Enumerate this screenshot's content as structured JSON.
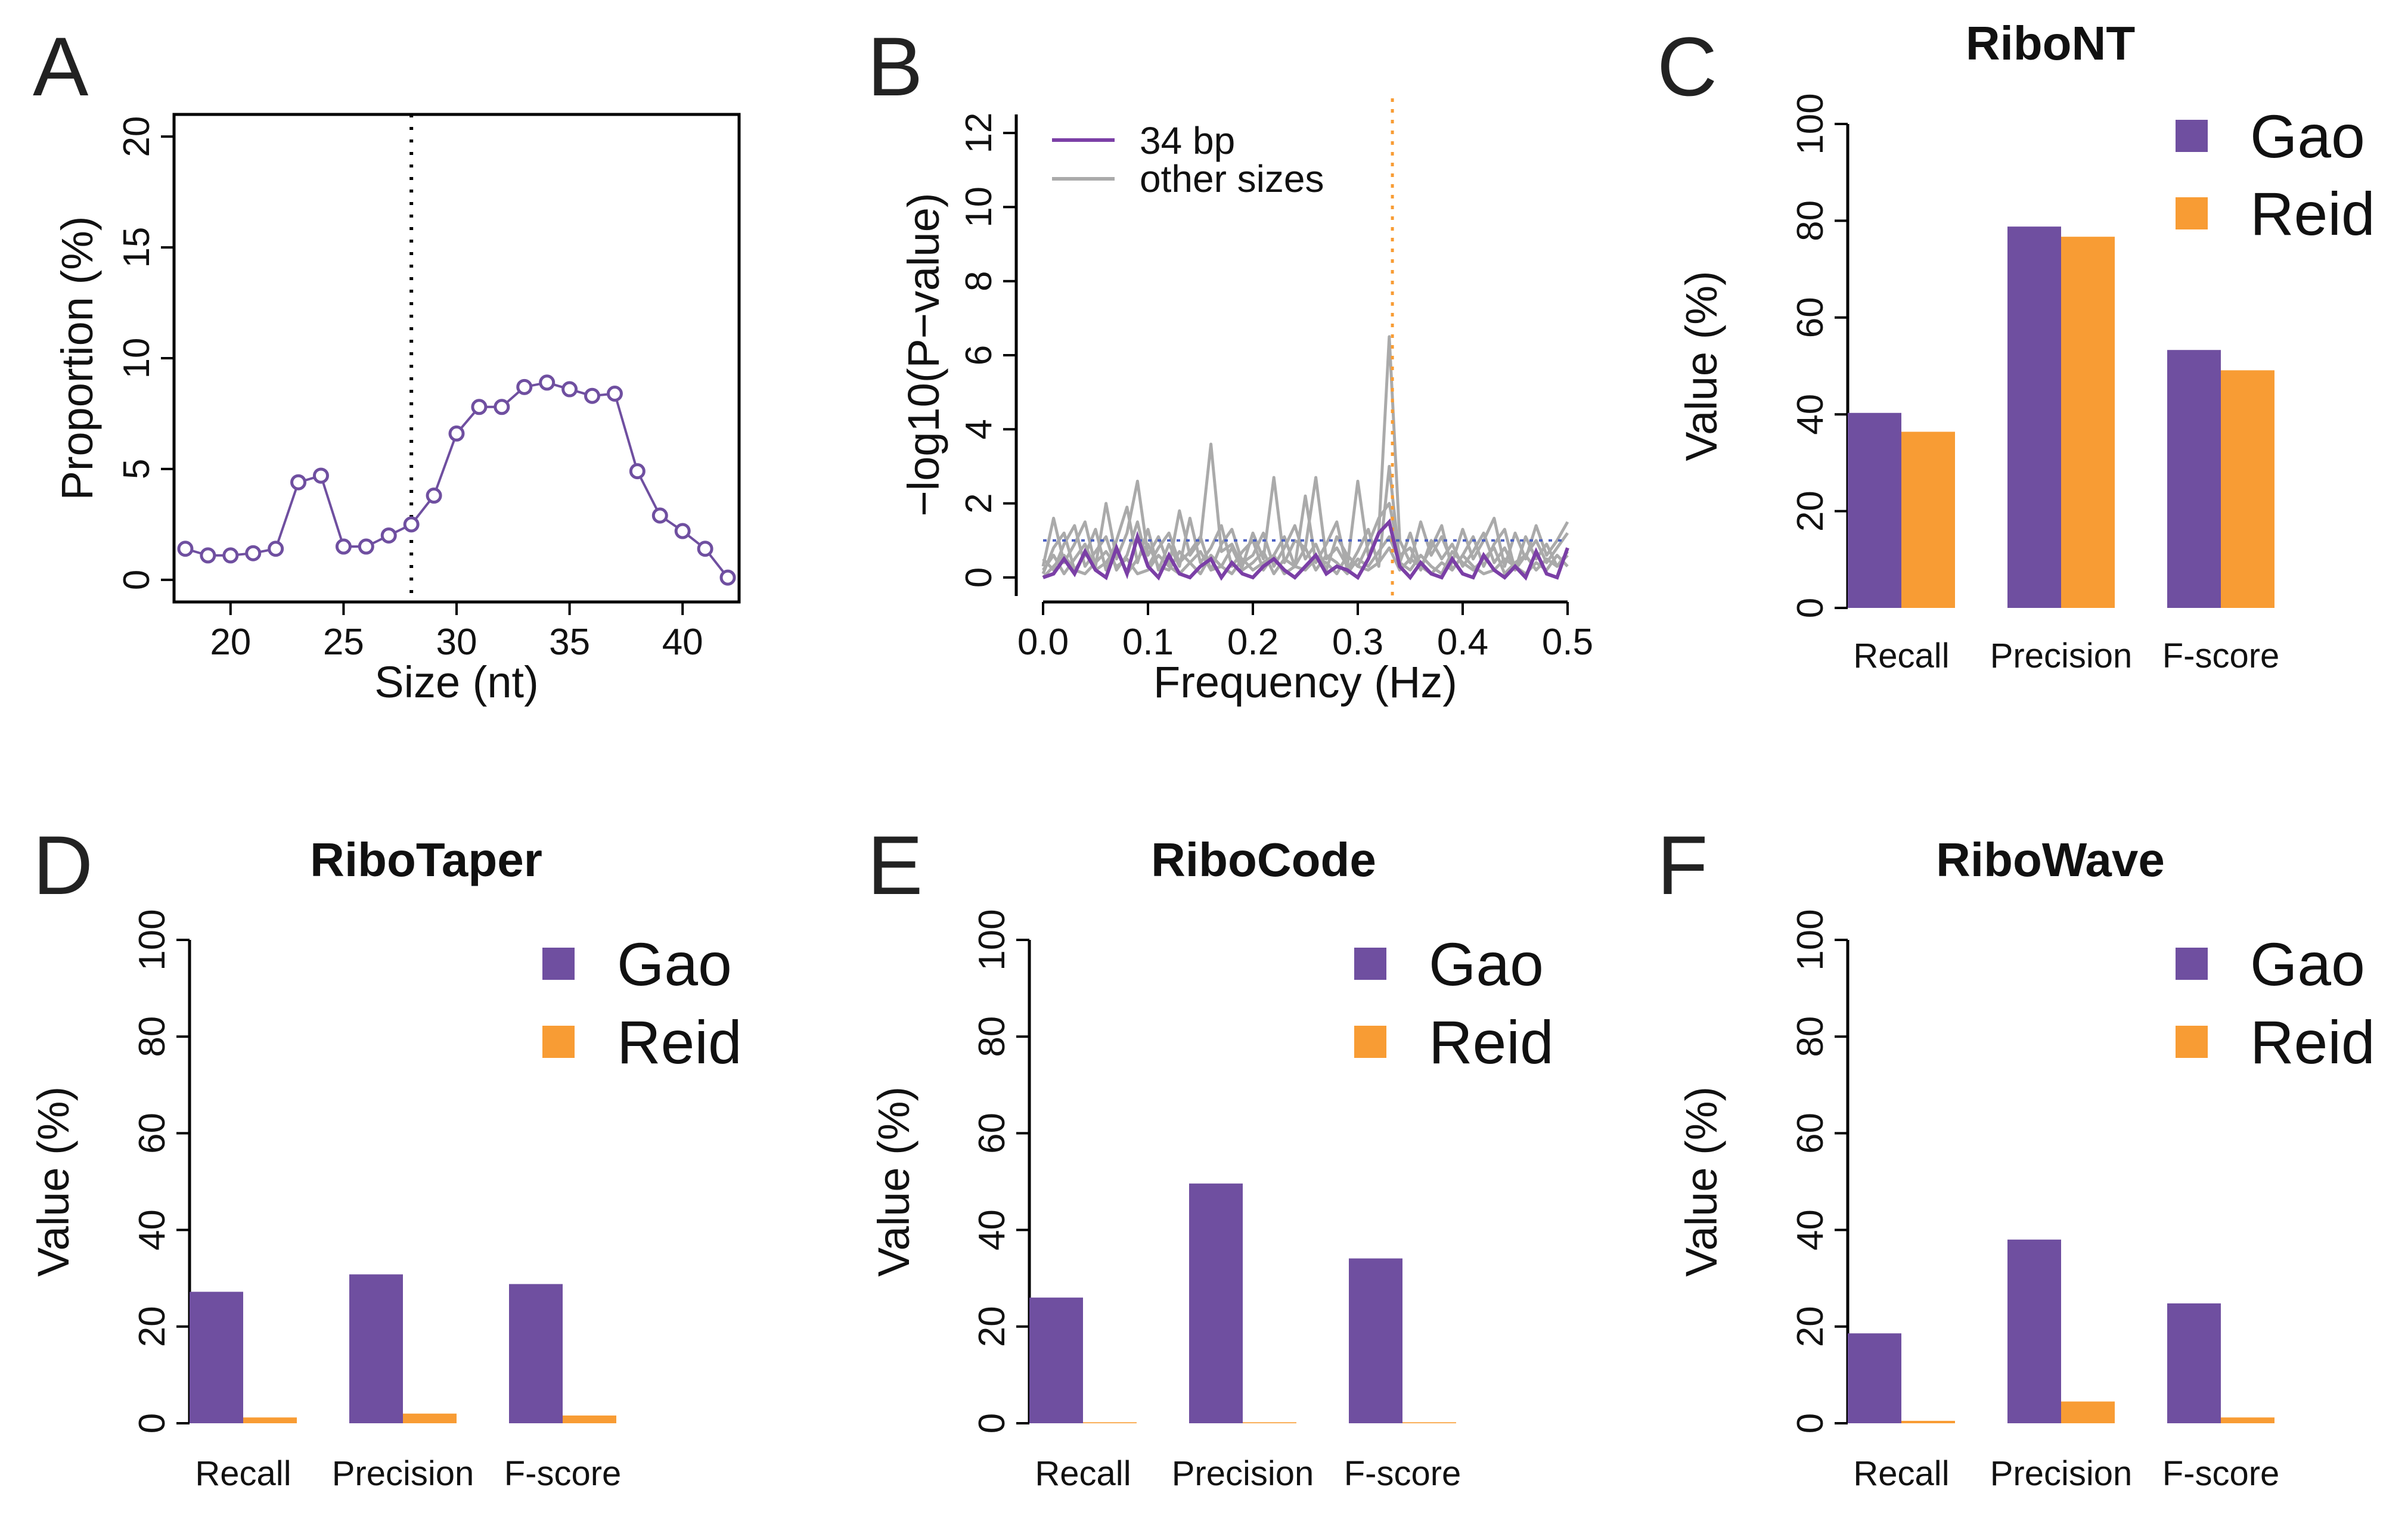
{
  "colors": {
    "gao": "#6f4fa0",
    "reid": "#f89c34",
    "series_34bp": "#7b3fa6",
    "other_sizes": "#aaaaaa",
    "threshold": "#4a5fc1",
    "peak_marker": "#f89c34"
  },
  "chart_data": [
    {
      "id": "A",
      "type": "line",
      "panel_letter": "A",
      "title": "",
      "xlabel": "Size (nt)",
      "ylabel": "Proportion (%)",
      "xlim": [
        17.5,
        42.5
      ],
      "ylim": [
        -1,
        21
      ],
      "xticks": [
        20,
        25,
        30,
        35,
        40
      ],
      "yticks": [
        0,
        5,
        10,
        15,
        20
      ],
      "x": [
        18,
        19,
        20,
        21,
        22,
        23,
        24,
        25,
        26,
        27,
        28,
        29,
        30,
        31,
        32,
        33,
        34,
        35,
        36,
        37,
        38,
        39,
        40,
        41,
        42
      ],
      "y": [
        1.4,
        1.1,
        1.1,
        1.2,
        1.4,
        4.4,
        4.7,
        1.5,
        1.5,
        2.0,
        2.5,
        3.8,
        6.6,
        7.8,
        7.8,
        8.7,
        8.9,
        8.6,
        8.3,
        8.4,
        4.9,
        2.9,
        2.2,
        1.4,
        0.1
      ],
      "vline_x": 28
    },
    {
      "id": "B",
      "type": "line",
      "panel_letter": "B",
      "title": "",
      "xlabel": "Frequency (Hz)",
      "ylabel": "−log10(P−value)",
      "xlim": [
        0.0,
        0.5
      ],
      "ylim": [
        -0.5,
        12.5
      ],
      "xticks": [
        "0.0",
        "0.1",
        "0.2",
        "0.3",
        "0.4",
        "0.5"
      ],
      "yticks": [
        0,
        2,
        4,
        6,
        8,
        10,
        12
      ],
      "threshold_y": 1.0,
      "vline_x": 0.333,
      "legend": [
        "34 bp",
        "other sizes"
      ],
      "series": [
        {
          "name": "34 bp",
          "x": [
            0.0,
            0.01,
            0.02,
            0.03,
            0.04,
            0.05,
            0.06,
            0.07,
            0.08,
            0.09,
            0.1,
            0.11,
            0.12,
            0.13,
            0.14,
            0.15,
            0.16,
            0.17,
            0.18,
            0.19,
            0.2,
            0.21,
            0.22,
            0.23,
            0.24,
            0.25,
            0.26,
            0.27,
            0.28,
            0.29,
            0.3,
            0.31,
            0.32,
            0.33,
            0.34,
            0.35,
            0.36,
            0.37,
            0.38,
            0.39,
            0.4,
            0.41,
            0.42,
            0.43,
            0.44,
            0.45,
            0.46,
            0.47,
            0.48,
            0.49,
            0.5
          ],
          "y": [
            0.0,
            0.1,
            0.5,
            0.1,
            0.7,
            0.2,
            0.0,
            0.8,
            0.1,
            1.1,
            0.3,
            0.0,
            0.6,
            0.1,
            0.0,
            0.3,
            0.5,
            0.0,
            0.4,
            0.1,
            0.0,
            0.3,
            0.5,
            0.2,
            0.0,
            0.3,
            0.6,
            0.1,
            0.3,
            0.2,
            0.0,
            0.5,
            1.2,
            1.5,
            0.3,
            0.0,
            0.4,
            0.1,
            0.0,
            0.5,
            0.1,
            0.0,
            0.6,
            0.2,
            0.0,
            0.3,
            0.0,
            0.7,
            0.1,
            0.0,
            0.8
          ]
        },
        {
          "name": "other sizes (1)",
          "x": [
            0.0,
            0.01,
            0.02,
            0.03,
            0.04,
            0.05,
            0.06,
            0.07,
            0.08,
            0.09,
            0.1,
            0.11,
            0.12,
            0.13,
            0.14,
            0.15,
            0.16,
            0.17,
            0.18,
            0.19,
            0.2,
            0.21,
            0.22,
            0.23,
            0.24,
            0.25,
            0.26,
            0.27,
            0.28,
            0.29,
            0.3,
            0.31,
            0.32,
            0.33,
            0.34,
            0.35,
            0.36,
            0.37,
            0.38,
            0.39,
            0.4,
            0.41,
            0.42,
            0.43,
            0.44,
            0.45,
            0.46,
            0.47,
            0.48,
            0.49,
            0.5
          ],
          "y": [
            0.3,
            1.6,
            0.4,
            0.9,
            1.5,
            0.3,
            2.0,
            0.5,
            1.2,
            2.6,
            0.6,
            1.1,
            0.3,
            1.8,
            0.6,
            1.0,
            3.6,
            0.7,
            0.9,
            0.3,
            1.2,
            0.5,
            2.7,
            0.4,
            1.0,
            0.8,
            2.7,
            0.5,
            0.8,
            0.3,
            2.6,
            0.6,
            1.2,
            6.5,
            1.0,
            0.4,
            1.5,
            0.6,
            1.1,
            0.4,
            1.3,
            0.5,
            1.0,
            1.6,
            0.3,
            1.2,
            0.5,
            1.4,
            0.6,
            1.0,
            1.5
          ]
        },
        {
          "name": "other sizes (2)",
          "x": [
            0.0,
            0.01,
            0.02,
            0.03,
            0.04,
            0.05,
            0.06,
            0.07,
            0.08,
            0.09,
            0.1,
            0.11,
            0.12,
            0.13,
            0.14,
            0.15,
            0.16,
            0.17,
            0.18,
            0.19,
            0.2,
            0.21,
            0.22,
            0.23,
            0.24,
            0.25,
            0.26,
            0.27,
            0.28,
            0.29,
            0.3,
            0.31,
            0.32,
            0.33,
            0.34,
            0.35,
            0.36,
            0.37,
            0.38,
            0.39,
            0.4,
            0.41,
            0.42,
            0.43,
            0.44,
            0.45,
            0.46,
            0.47,
            0.48,
            0.49,
            0.5
          ],
          "y": [
            0.1,
            0.8,
            1.2,
            0.2,
            0.6,
            1.3,
            0.2,
            1.0,
            1.9,
            0.4,
            1.3,
            0.2,
            0.9,
            0.3,
            1.6,
            0.4,
            0.8,
            1.4,
            0.3,
            0.7,
            1.0,
            0.2,
            0.6,
            1.1,
            0.3,
            2.2,
            0.4,
            0.9,
            1.5,
            0.2,
            0.7,
            1.3,
            0.3,
            3.0,
            0.4,
            1.2,
            0.3,
            0.8,
            1.4,
            0.2,
            0.6,
            1.1,
            0.3,
            0.9,
            1.3,
            0.2,
            0.6,
            1.0,
            0.4,
            0.8,
            1.2
          ]
        },
        {
          "name": "other sizes (3)",
          "x": [
            0.0,
            0.01,
            0.02,
            0.03,
            0.04,
            0.05,
            0.06,
            0.07,
            0.08,
            0.09,
            0.1,
            0.11,
            0.12,
            0.13,
            0.14,
            0.15,
            0.16,
            0.17,
            0.18,
            0.19,
            0.2,
            0.21,
            0.22,
            0.23,
            0.24,
            0.25,
            0.26,
            0.27,
            0.28,
            0.29,
            0.3,
            0.31,
            0.32,
            0.33,
            0.34,
            0.35,
            0.36,
            0.37,
            0.38,
            0.39,
            0.4,
            0.41,
            0.42,
            0.43,
            0.44,
            0.45,
            0.46,
            0.47,
            0.48,
            0.49,
            0.5
          ],
          "y": [
            0.5,
            0.2,
            0.9,
            1.4,
            0.3,
            0.7,
            1.1,
            0.2,
            0.6,
            1.5,
            0.3,
            0.8,
            1.2,
            0.4,
            0.7,
            1.1,
            0.2,
            0.9,
            1.3,
            0.4,
            0.6,
            1.2,
            0.3,
            0.8,
            1.4,
            0.5,
            0.9,
            0.2,
            1.1,
            0.6,
            0.3,
            0.9,
            1.6,
            2.0,
            0.6,
            0.8,
            0.2,
            1.0,
            0.5,
            0.9,
            0.3,
            0.7,
            1.2,
            0.4,
            0.8,
            0.2,
            1.1,
            0.5,
            0.9,
            0.3,
            0.7
          ]
        },
        {
          "name": "other sizes (4)",
          "x": [
            0.0,
            0.01,
            0.02,
            0.03,
            0.04,
            0.05,
            0.06,
            0.07,
            0.08,
            0.09,
            0.1,
            0.11,
            0.12,
            0.13,
            0.14,
            0.15,
            0.16,
            0.17,
            0.18,
            0.19,
            0.2,
            0.21,
            0.22,
            0.23,
            0.24,
            0.25,
            0.26,
            0.27,
            0.28,
            0.29,
            0.3,
            0.31,
            0.32,
            0.33,
            0.34,
            0.35,
            0.36,
            0.37,
            0.38,
            0.39,
            0.4,
            0.41,
            0.42,
            0.43,
            0.44,
            0.45,
            0.46,
            0.47,
            0.48,
            0.49,
            0.5
          ],
          "y": [
            0.2,
            0.6,
            0.1,
            0.5,
            0.9,
            0.2,
            0.4,
            0.8,
            0.1,
            0.5,
            0.9,
            0.3,
            0.2,
            0.7,
            0.4,
            0.1,
            0.6,
            0.3,
            0.8,
            0.2,
            0.4,
            0.7,
            0.1,
            0.5,
            0.3,
            0.8,
            0.2,
            0.6,
            0.4,
            0.1,
            0.5,
            0.3,
            0.7,
            1.1,
            0.4,
            0.2,
            0.6,
            0.3,
            0.1,
            0.7,
            0.4,
            0.2,
            0.5,
            0.8,
            0.1,
            0.4,
            0.6,
            0.2,
            0.5,
            0.3,
            0.6
          ]
        },
        {
          "name": "other sizes (5)",
          "x": [
            0.0,
            0.01,
            0.02,
            0.03,
            0.04,
            0.05,
            0.06,
            0.07,
            0.08,
            0.09,
            0.1,
            0.11,
            0.12,
            0.13,
            0.14,
            0.15,
            0.16,
            0.17,
            0.18,
            0.19,
            0.2,
            0.21,
            0.22,
            0.23,
            0.24,
            0.25,
            0.26,
            0.27,
            0.28,
            0.29,
            0.3,
            0.31,
            0.32,
            0.33,
            0.34,
            0.35,
            0.36,
            0.37,
            0.38,
            0.39,
            0.4,
            0.41,
            0.42,
            0.43,
            0.44,
            0.45,
            0.46,
            0.47,
            0.48,
            0.49,
            0.5
          ],
          "y": [
            0.0,
            0.3,
            0.6,
            0.2,
            0.1,
            0.4,
            0.7,
            0.3,
            0.5,
            0.1,
            0.2,
            0.6,
            0.3,
            0.1,
            0.4,
            0.7,
            0.2,
            0.3,
            0.1,
            0.5,
            0.2,
            0.4,
            0.6,
            0.1,
            0.3,
            0.2,
            0.5,
            0.4,
            0.1,
            0.6,
            0.3,
            0.2,
            0.4,
            0.8,
            0.2,
            0.5,
            0.3,
            0.1,
            0.4,
            0.2,
            0.6,
            0.3,
            0.1,
            0.2,
            0.5,
            0.3,
            0.1,
            0.4,
            0.2,
            0.6,
            0.3
          ]
        }
      ]
    },
    {
      "id": "C",
      "type": "bar",
      "panel_letter": "C",
      "title": "RiboNT",
      "xlabel": "",
      "ylabel": "Value (%)",
      "ylim": [
        0,
        100
      ],
      "yticks": [
        0,
        20,
        40,
        60,
        80,
        100
      ],
      "categories": [
        "Recall",
        "Precision",
        "F-score"
      ],
      "legend": [
        "Gao",
        "Reid"
      ],
      "series": [
        {
          "name": "Gao",
          "values": [
            40.3,
            78.8,
            53.3
          ]
        },
        {
          "name": "Reid",
          "values": [
            36.4,
            76.7,
            49.1
          ]
        }
      ]
    },
    {
      "id": "D",
      "type": "bar",
      "panel_letter": "D",
      "title": "RiboTaper",
      "xlabel": "",
      "ylabel": "Value (%)",
      "ylim": [
        0,
        100
      ],
      "yticks": [
        0,
        20,
        40,
        60,
        80,
        100
      ],
      "categories": [
        "Recall",
        "Precision",
        "F-score"
      ],
      "legend": [
        "Gao",
        "Reid"
      ],
      "series": [
        {
          "name": "Gao",
          "values": [
            27.2,
            30.8,
            28.8
          ]
        },
        {
          "name": "Reid",
          "values": [
            1.2,
            2.0,
            1.6
          ]
        }
      ]
    },
    {
      "id": "E",
      "type": "bar",
      "panel_letter": "E",
      "title": "RiboCode",
      "xlabel": "",
      "ylabel": "Value (%)",
      "ylim": [
        0,
        100
      ],
      "yticks": [
        0,
        20,
        40,
        60,
        80,
        100
      ],
      "categories": [
        "Recall",
        "Precision",
        "F-score"
      ],
      "legend": [
        "Gao",
        "Reid"
      ],
      "series": [
        {
          "name": "Gao",
          "values": [
            26.0,
            49.6,
            34.1
          ]
        },
        {
          "name": "Reid",
          "values": [
            0.2,
            0.2,
            0.2
          ]
        }
      ]
    },
    {
      "id": "F",
      "type": "bar",
      "panel_letter": "F",
      "title": "RiboWave",
      "xlabel": "",
      "ylabel": "Value (%)",
      "ylim": [
        0,
        100
      ],
      "yticks": [
        0,
        20,
        40,
        60,
        80,
        100
      ],
      "categories": [
        "Recall",
        "Precision",
        "F-score"
      ],
      "legend": [
        "Gao",
        "Reid"
      ],
      "series": [
        {
          "name": "Gao",
          "values": [
            18.6,
            38.0,
            24.8
          ]
        },
        {
          "name": "Reid",
          "values": [
            0.5,
            4.5,
            1.2
          ]
        }
      ]
    }
  ]
}
